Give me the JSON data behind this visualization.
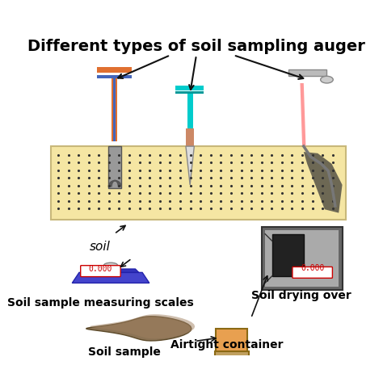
{
  "title": "Different types of soil sampling auger",
  "title_fontsize": 14,
  "title_fontweight": "bold",
  "background_color": "#ffffff",
  "soil_color": "#f5e6a3",
  "soil_border_color": "#c8b87a",
  "dot_color": "#333333",
  "label_soil": "soil",
  "label_scales": "Soil sample measuring scales",
  "label_sample": "Soil sample",
  "label_airtight": "Airtight container",
  "label_drying": "Soil drying over",
  "display_value": "0.000",
  "display_color": "#cc0000",
  "scale_body_color": "#4444cc",
  "scale_top_color": "#888888",
  "oven_body_color": "#555555",
  "oven_face_color": "#aaaaaa",
  "oven_door_color": "#333333",
  "auger1_handle_top": "#e07030",
  "auger1_handle_side": "#4466bb",
  "auger1_body_color": "#888888",
  "auger2_handle_top": "#00cccc",
  "auger2_handle_side": "#00aaaa",
  "auger2_body_color": "#cc8866",
  "auger3_handle_color": "#cccccc",
  "auger3_rod_color": "#ff9999",
  "container_color": "#e8a050",
  "arrow_color": "#111111"
}
